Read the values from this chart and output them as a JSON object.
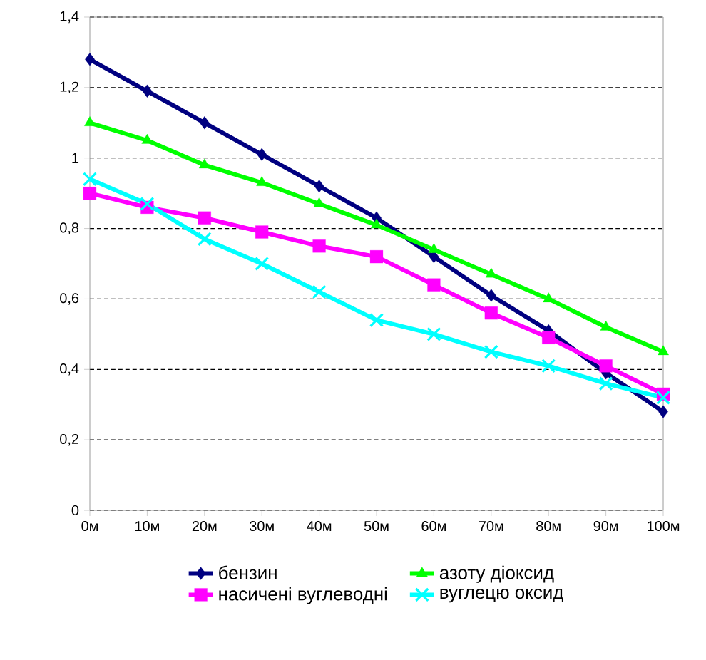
{
  "chart_data": {
    "type": "line",
    "categories": [
      "0м",
      "10м",
      "20м",
      "30м",
      "40м",
      "50м",
      "60м",
      "70м",
      "80м",
      "90м",
      "100м"
    ],
    "series": [
      {
        "name": "бензин",
        "color": "#000080",
        "marker": "diamond",
        "values": [
          1.28,
          1.19,
          1.1,
          1.01,
          0.92,
          0.83,
          0.72,
          0.61,
          0.51,
          0.39,
          0.28
        ]
      },
      {
        "name": "азоту діоксид",
        "color": "#00ff00",
        "marker": "triangle",
        "values": [
          1.1,
          1.05,
          0.98,
          0.93,
          0.87,
          0.81,
          0.74,
          0.67,
          0.6,
          0.52,
          0.45
        ]
      },
      {
        "name": "насичені вуглеводні",
        "color": "#ff00ff",
        "marker": "square",
        "values": [
          0.9,
          0.86,
          0.83,
          0.79,
          0.75,
          0.72,
          0.64,
          0.56,
          0.49,
          0.41,
          0.33
        ]
      },
      {
        "name": "вуглецю оксид",
        "color": "#00ffff",
        "marker": "cross",
        "values": [
          0.94,
          0.87,
          0.77,
          0.7,
          0.62,
          0.54,
          0.5,
          0.45,
          0.41,
          0.36,
          0.32
        ]
      }
    ],
    "ylim": [
      0,
      1.4
    ],
    "yticks": [
      0,
      {
        "value": 0.2,
        "label": "0,2"
      },
      {
        "value": 0.4,
        "label": "0,4"
      },
      {
        "value": 0.6,
        "label": "0,6"
      },
      {
        "value": 0.8,
        "label": "0,8"
      },
      1,
      {
        "value": 1.2,
        "label": "1,2"
      },
      {
        "value": 1.4,
        "label": "1,4"
      }
    ],
    "grid": "y",
    "legend": "bottom",
    "line_style": "solid"
  }
}
